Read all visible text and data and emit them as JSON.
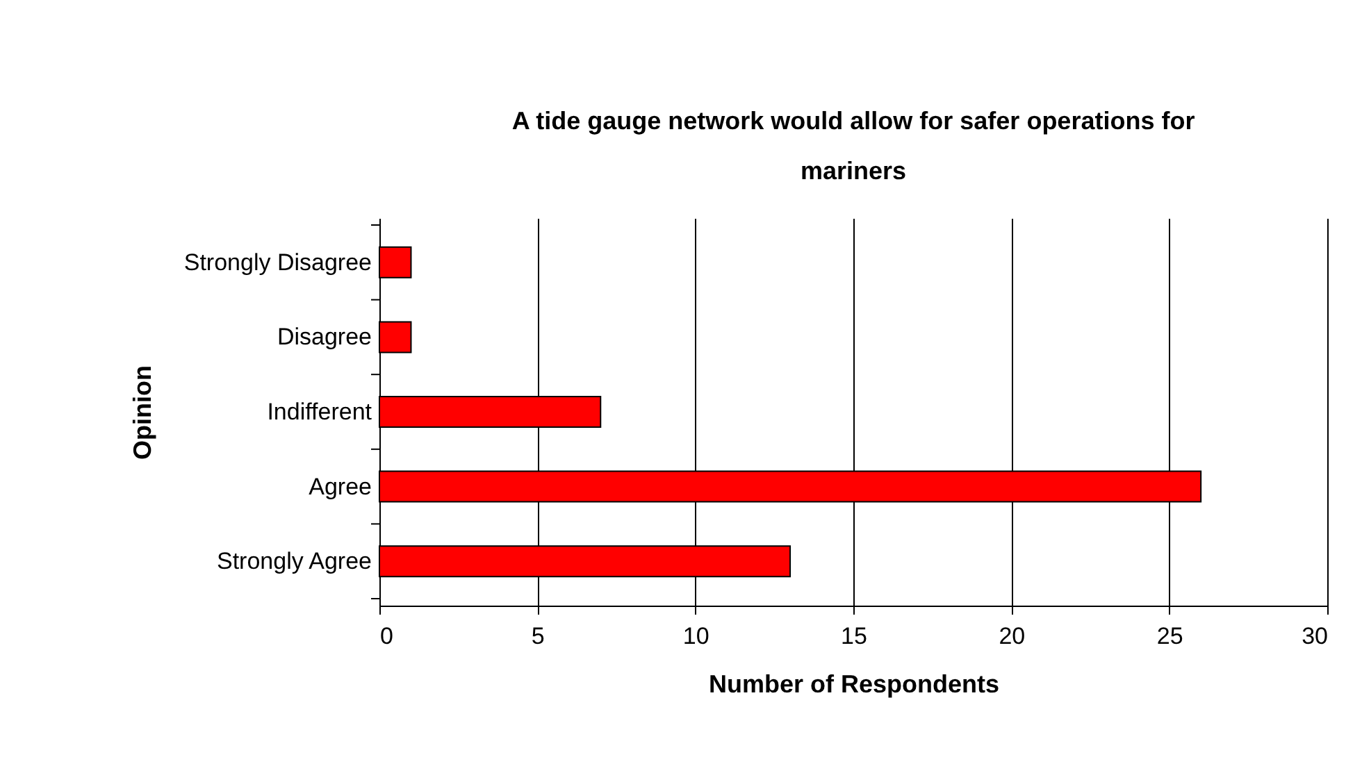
{
  "chart_data": {
    "type": "bar",
    "orientation": "horizontal",
    "title": "A tide gauge network would allow for safer operations for mariners",
    "xlabel": "Number of Respondents",
    "ylabel": "Opinion",
    "categories": [
      "Strongly Disagree",
      "Disagree",
      "Indifferent",
      "Agree",
      "Strongly Agree"
    ],
    "values": [
      1,
      1,
      7,
      26,
      13
    ],
    "color": "#ff0000",
    "xlim": [
      0,
      30
    ],
    "xticks": [
      0,
      5,
      10,
      15,
      20,
      25,
      30
    ],
    "grid": "x"
  }
}
